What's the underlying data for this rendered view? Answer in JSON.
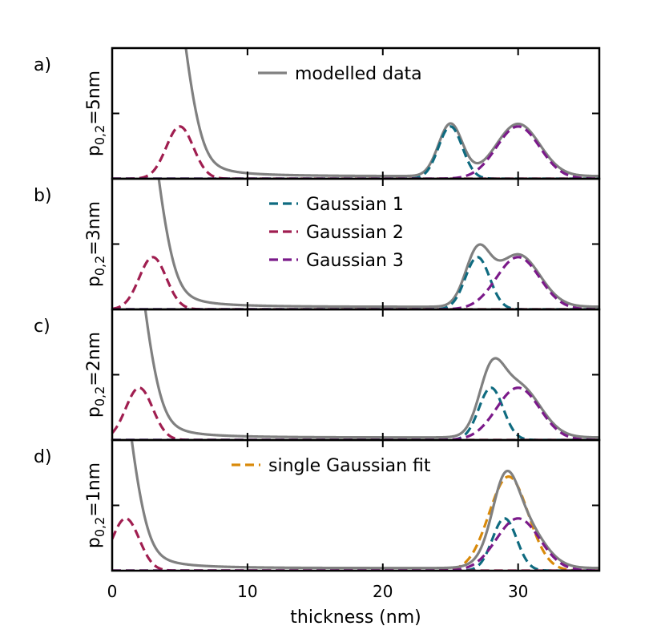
{
  "colors": {
    "modelled": "#808080",
    "gaussian1": "#0f6b80",
    "gaussian2": "#a01e50",
    "gaussian3": "#7b1a8a",
    "single": "#d98a0a"
  },
  "chart_data": {
    "type": "line",
    "xlabel": "thickness (nm)",
    "xlim": [
      0,
      36
    ],
    "xticks": [
      "0",
      "10",
      "20",
      "30"
    ],
    "ylim": [
      0,
      1
    ],
    "panels": [
      {
        "letter": "a)",
        "ylabel_main": "p",
        "ylabel_sub": "0,2",
        "ylabel_tail": "=5nm",
        "p": 5,
        "legend": [
          {
            "label": "modelled data",
            "series": "modelled"
          }
        ],
        "series": [
          {
            "name": "Gaussian 1",
            "mu": 25,
            "sigma": 0.88,
            "amp": 0.4
          },
          {
            "name": "Gaussian 2",
            "mu": 5,
            "sigma": 1.0,
            "amp": 0.4
          },
          {
            "name": "Gaussian 3",
            "mu": 30,
            "sigma": 1.6,
            "amp": 0.4
          }
        ]
      },
      {
        "letter": "b)",
        "ylabel_main": "p",
        "ylabel_sub": "0,2",
        "ylabel_tail": "=3nm",
        "p": 3,
        "legend": [
          {
            "label": "Gaussian 1",
            "series": "gaussian1"
          },
          {
            "label": "Gaussian 2",
            "series": "gaussian2"
          },
          {
            "label": "Gaussian 3",
            "series": "gaussian3"
          }
        ],
        "series": [
          {
            "name": "Gaussian 1",
            "mu": 27,
            "sigma": 0.9,
            "amp": 0.4
          },
          {
            "name": "Gaussian 2",
            "mu": 3,
            "sigma": 1.0,
            "amp": 0.4
          },
          {
            "name": "Gaussian 3",
            "mu": 30,
            "sigma": 1.6,
            "amp": 0.4
          }
        ]
      },
      {
        "letter": "c)",
        "ylabel_main": "p",
        "ylabel_sub": "0,2",
        "ylabel_tail": "=2nm",
        "p": 2,
        "legend": [],
        "series": [
          {
            "name": "Gaussian 1",
            "mu": 28,
            "sigma": 0.9,
            "amp": 0.4
          },
          {
            "name": "Gaussian 2",
            "mu": 2,
            "sigma": 1.0,
            "amp": 0.4
          },
          {
            "name": "Gaussian 3",
            "mu": 30,
            "sigma": 1.6,
            "amp": 0.4
          }
        ]
      },
      {
        "letter": "d)",
        "ylabel_main": "p",
        "ylabel_sub": "0,2",
        "ylabel_tail": "=1nm",
        "p": 1,
        "legend": [
          {
            "label": "single Gaussian fit",
            "series": "single"
          }
        ],
        "series": [
          {
            "name": "Gaussian 1",
            "mu": 29,
            "sigma": 0.9,
            "amp": 0.4
          },
          {
            "name": "Gaussian 2",
            "mu": 1,
            "sigma": 1.0,
            "amp": 0.4
          },
          {
            "name": "Gaussian 3",
            "mu": 30,
            "sigma": 1.6,
            "amp": 0.4
          },
          {
            "name": "single Gaussian fit",
            "mu": 29.3,
            "sigma": 1.45,
            "amp": 0.72
          }
        ]
      }
    ]
  }
}
